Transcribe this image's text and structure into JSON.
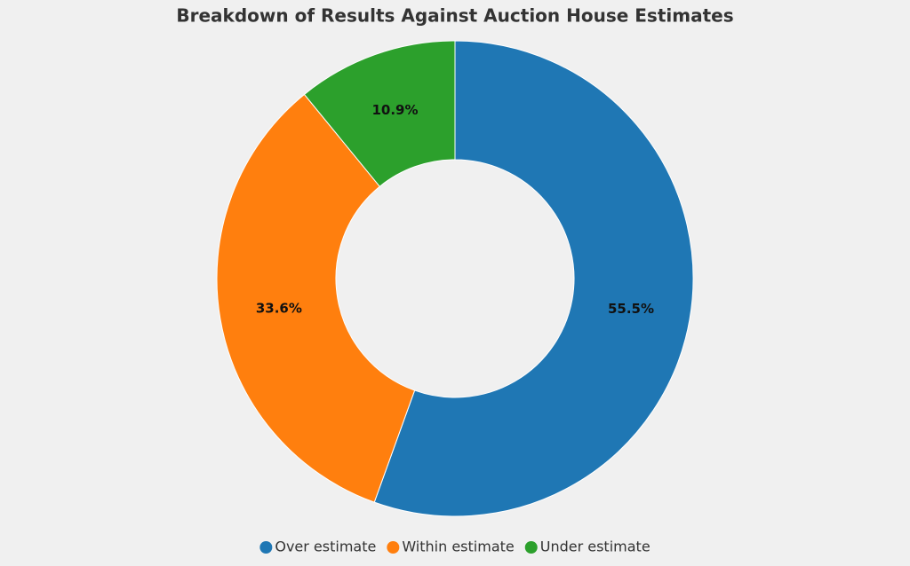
{
  "chart_data": {
    "type": "donut",
    "title": "Breakdown of Results Against Auction House Estimates",
    "categories": [
      "Over estimate",
      "Within estimate",
      "Under estimate"
    ],
    "values": [
      55.5,
      33.6,
      10.9
    ],
    "value_labels": [
      "55.5%",
      "33.6%",
      "10.9%"
    ],
    "colors": [
      "#1f77b4",
      "#ff7f0e",
      "#2ca02c"
    ],
    "legend": "bottom"
  }
}
